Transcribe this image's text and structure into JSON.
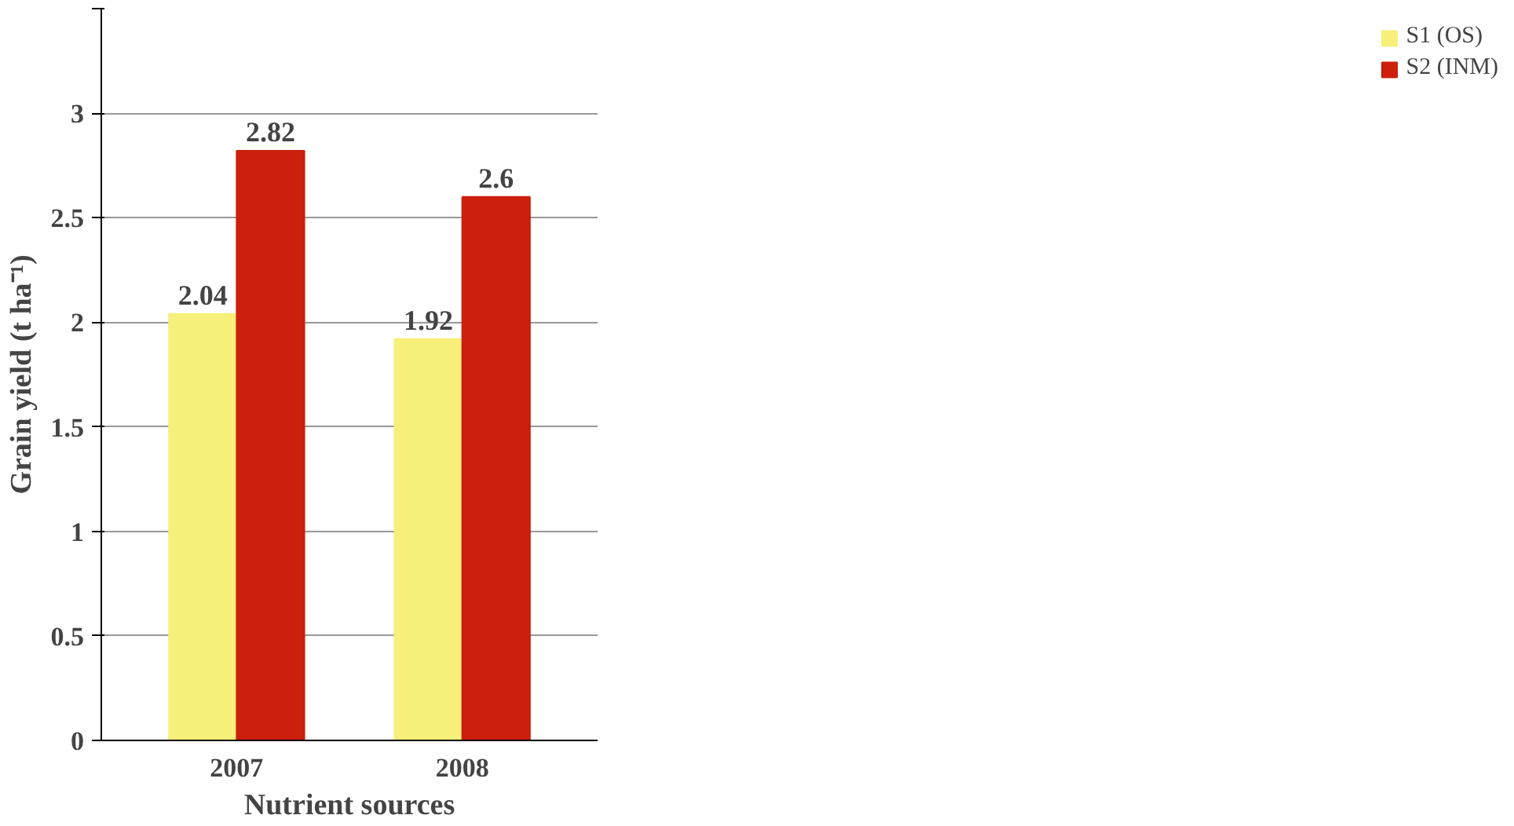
{
  "chart_data": {
    "type": "bar",
    "xlabel": "Nutrient sources",
    "ylabel": "Grain yield (t ha⁻¹)",
    "categories": [
      "2007",
      "2008"
    ],
    "series": [
      {
        "name": "S1 (OS)",
        "color": "#f7f07a",
        "values": [
          2.04,
          1.92
        ]
      },
      {
        "name": "S2 (INM)",
        "color": "#cc1f0c",
        "values": [
          2.82,
          2.6
        ]
      }
    ],
    "ylim": [
      0,
      3.5
    ],
    "yticks": [
      0,
      0.5,
      1,
      1.5,
      2,
      2.5,
      3,
      {
        "value": 3.5,
        "label": null
      }
    ],
    "grid": "y",
    "legend": "right",
    "data_labels": true
  }
}
